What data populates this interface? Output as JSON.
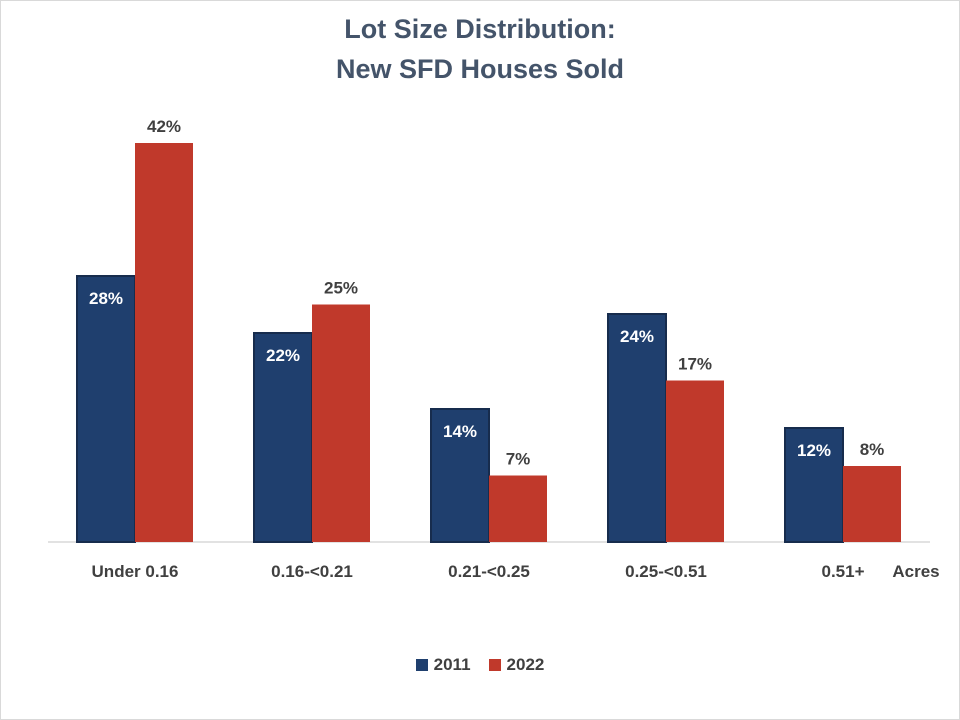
{
  "chart_data": {
    "type": "bar",
    "title_lines": [
      "Lot Size Distribution:",
      "New SFD Houses Sold"
    ],
    "categories": [
      "Under 0.16",
      "0.16-<0.21",
      "0.21-<0.25",
      "0.25-<0.51",
      "0.51+"
    ],
    "x_unit_label": "Acres",
    "series": [
      {
        "name": "2011",
        "values": [
          28,
          22,
          14,
          24,
          12
        ],
        "labels": [
          "28%",
          "22%",
          "14%",
          "24%",
          "12%"
        ],
        "color": "#1f3f6e"
      },
      {
        "name": "2022",
        "values": [
          42,
          25,
          7,
          17,
          8
        ],
        "labels": [
          "42%",
          "25%",
          "7%",
          "17%",
          "8%"
        ],
        "color": "#c0392b"
      }
    ],
    "ylim": [
      0,
      42
    ],
    "grid": false,
    "legend_position": "bottom",
    "colors": {
      "series_2011": "#1f3f6e",
      "series_2022": "#c0392b",
      "title": "#44546a",
      "axis_label": "#404040"
    }
  }
}
